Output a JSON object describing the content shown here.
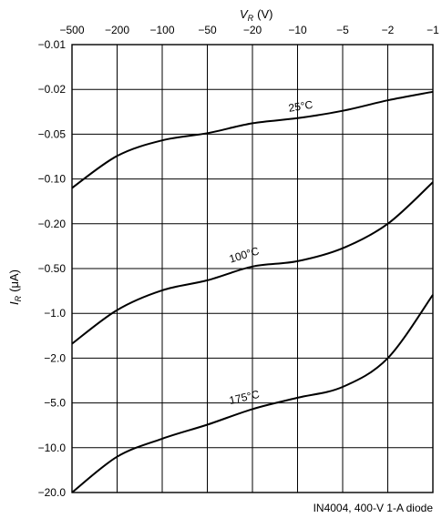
{
  "chart_data": {
    "type": "line",
    "title": "",
    "xlabel": "V_R (V)",
    "xlabel_main": "V",
    "xlabel_sub": "R",
    "xlabel_unit": "(V)",
    "ylabel": "I_R (μA)",
    "ylabel_main": "I",
    "ylabel_sub": "R",
    "ylabel_unit": "(μA)",
    "x_axis_position": "top",
    "x_ticks": [
      -500,
      -200,
      -100,
      -50,
      -20,
      -10,
      -5,
      -2,
      -1
    ],
    "x_tick_labels": [
      "−500",
      "−200",
      "−100",
      "−50",
      "−20",
      "−10",
      "−5",
      "−2",
      "−1"
    ],
    "y_ticks": [
      -0.01,
      -0.02,
      -0.05,
      -0.1,
      -0.2,
      -0.5,
      -1.0,
      -2.0,
      -5.0,
      -10.0,
      -20.0
    ],
    "y_tick_labels": [
      "−0.01",
      "−0.02",
      "−0.05",
      "−0.10",
      "−0.20",
      "−0.50",
      "−1.0",
      "−2.0",
      "−5.0",
      "−10.0",
      "−20.0"
    ],
    "grid": true,
    "caption": "IN4004, 400-V 1-A diode",
    "series": [
      {
        "name": "25°C",
        "x": [
          -500,
          -200,
          -100,
          -50,
          -20,
          -10,
          -5,
          -2,
          -1
        ],
        "y": [
          -0.115,
          -0.07,
          -0.055,
          -0.049,
          -0.04,
          -0.036,
          -0.031,
          -0.025,
          -0.021
        ]
      },
      {
        "name": "100°C",
        "x": [
          -500,
          -200,
          -100,
          -50,
          -20,
          -10,
          -5,
          -2,
          -1
        ],
        "y": [
          -1.6,
          -0.95,
          -0.7,
          -0.6,
          -0.48,
          -0.43,
          -0.33,
          -0.2,
          -0.105
        ]
      },
      {
        "name": "175°C",
        "x": [
          -500,
          -200,
          -100,
          -50,
          -20,
          -10,
          -5,
          -2,
          -1
        ],
        "y": [
          -20.0,
          -11.5,
          -8.7,
          -7.0,
          -5.5,
          -4.5,
          -3.6,
          -2.0,
          -0.75
        ]
      }
    ]
  }
}
